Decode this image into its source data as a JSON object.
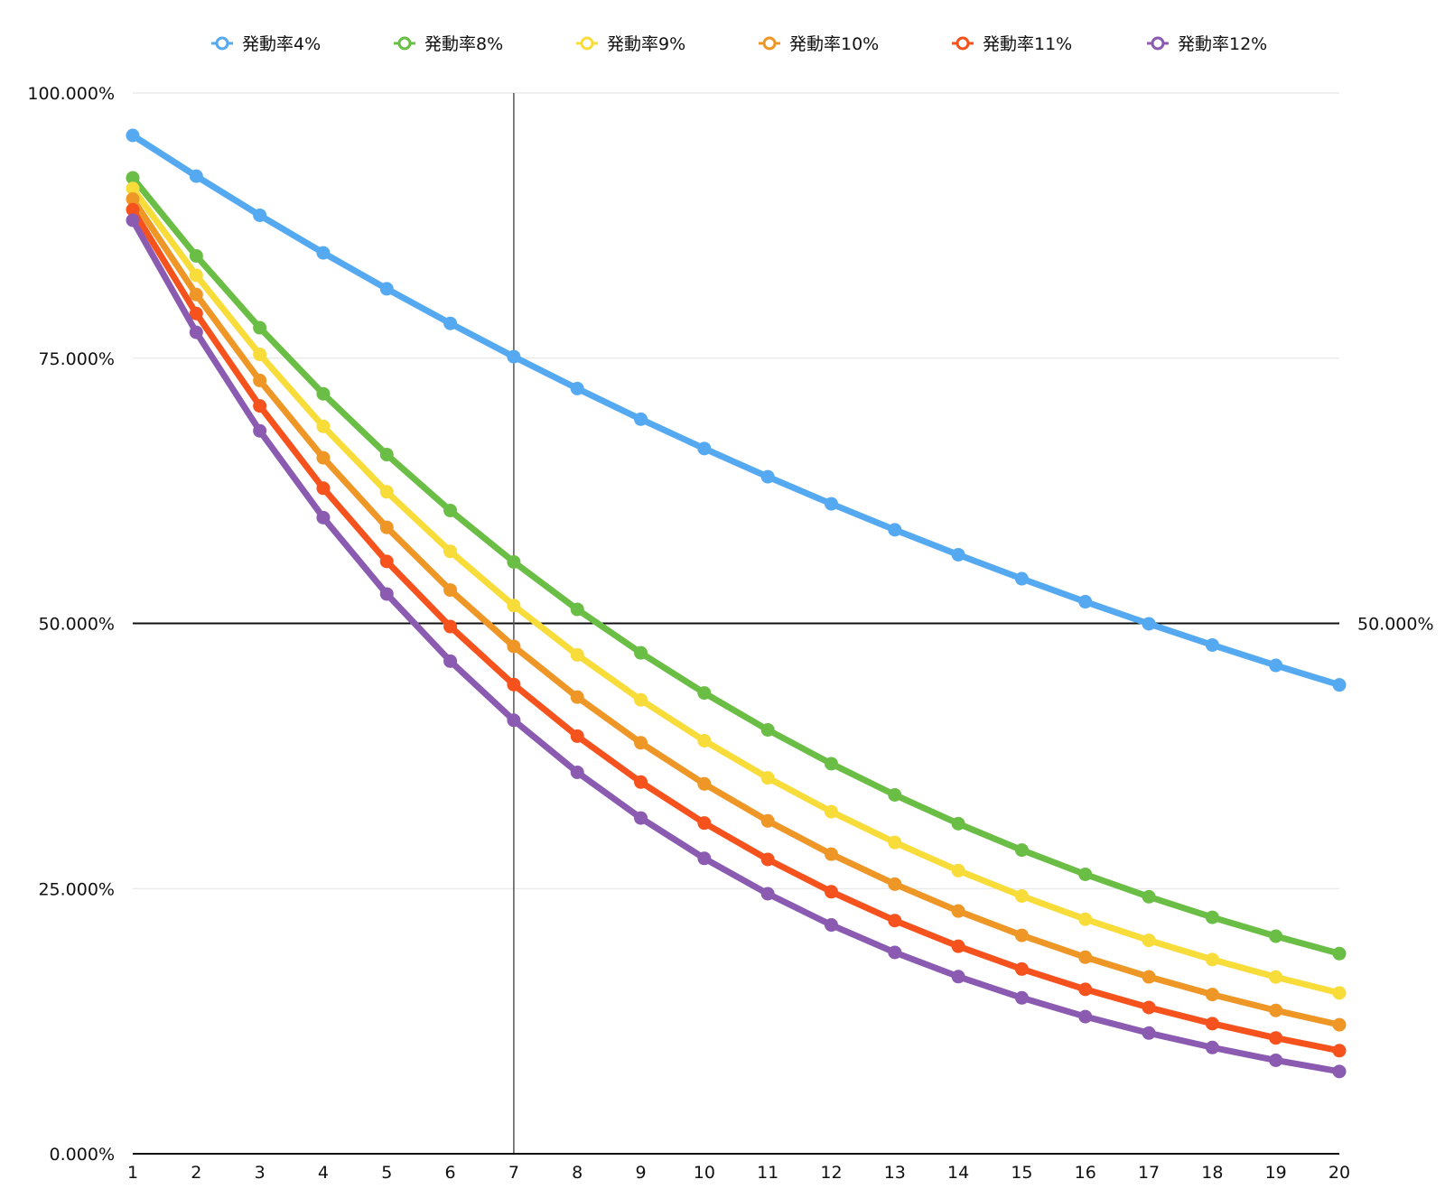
{
  "chart_data": {
    "type": "line",
    "x": [
      1,
      2,
      3,
      4,
      5,
      6,
      7,
      8,
      9,
      10,
      11,
      12,
      13,
      14,
      15,
      16,
      17,
      18,
      19,
      20
    ],
    "ylim": [
      0,
      100
    ],
    "yticks": [
      "0.000%",
      "25.000%",
      "50.000%",
      "75.000%",
      "100.000%"
    ],
    "xticks": [
      "1",
      "2",
      "3",
      "4",
      "5",
      "6",
      "7",
      "8",
      "9",
      "10",
      "11",
      "12",
      "13",
      "14",
      "15",
      "16",
      "17",
      "18",
      "19",
      "20"
    ],
    "legend_position": "top",
    "grid": true,
    "annotations": {
      "reference_line_label": "50.000%",
      "reference_line_value": 50,
      "vertical_marker_x": 7
    },
    "series": [
      {
        "name": "発動率4%",
        "color": "#55a9f0",
        "values": [
          96.0,
          92.16,
          88.47,
          84.93,
          81.54,
          78.28,
          75.14,
          72.14,
          69.25,
          66.48,
          63.82,
          61.27,
          58.82,
          56.47,
          54.21,
          52.04,
          49.96,
          47.96,
          46.04,
          44.2
        ]
      },
      {
        "name": "発動率8%",
        "color": "#6abe45",
        "values": [
          92.0,
          84.64,
          77.87,
          71.64,
          65.91,
          60.64,
          55.79,
          51.32,
          47.22,
          43.44,
          39.96,
          36.77,
          33.83,
          31.12,
          28.63,
          26.34,
          24.23,
          22.29,
          20.51,
          18.87
        ]
      },
      {
        "name": "発動率9%",
        "color": "#f7dc3a",
        "values": [
          91.0,
          82.81,
          75.36,
          68.57,
          62.4,
          56.79,
          51.68,
          47.03,
          42.79,
          38.94,
          35.44,
          32.25,
          29.35,
          26.7,
          24.3,
          22.11,
          20.12,
          18.31,
          16.66,
          15.16
        ]
      },
      {
        "name": "発動率10%",
        "color": "#ee9626",
        "values": [
          90.0,
          81.0,
          72.9,
          65.61,
          59.05,
          53.14,
          47.83,
          43.05,
          38.74,
          34.87,
          31.38,
          28.24,
          25.42,
          22.88,
          20.59,
          18.53,
          16.68,
          15.01,
          13.51,
          12.16
        ]
      },
      {
        "name": "発動率11%",
        "color": "#f5521d",
        "values": [
          89.0,
          79.21,
          70.5,
          62.74,
          55.84,
          49.7,
          44.23,
          39.37,
          35.04,
          31.18,
          27.75,
          24.7,
          21.98,
          19.56,
          17.41,
          15.5,
          13.79,
          12.27,
          10.92,
          9.72
        ]
      },
      {
        "name": "発動率12%",
        "color": "#8a5bb0",
        "values": [
          88.0,
          77.44,
          68.15,
          59.97,
          52.77,
          46.44,
          40.87,
          35.96,
          31.65,
          27.85,
          24.51,
          21.57,
          18.98,
          16.7,
          14.7,
          12.93,
          11.38,
          10.02,
          8.81,
          7.76
        ]
      }
    ]
  }
}
